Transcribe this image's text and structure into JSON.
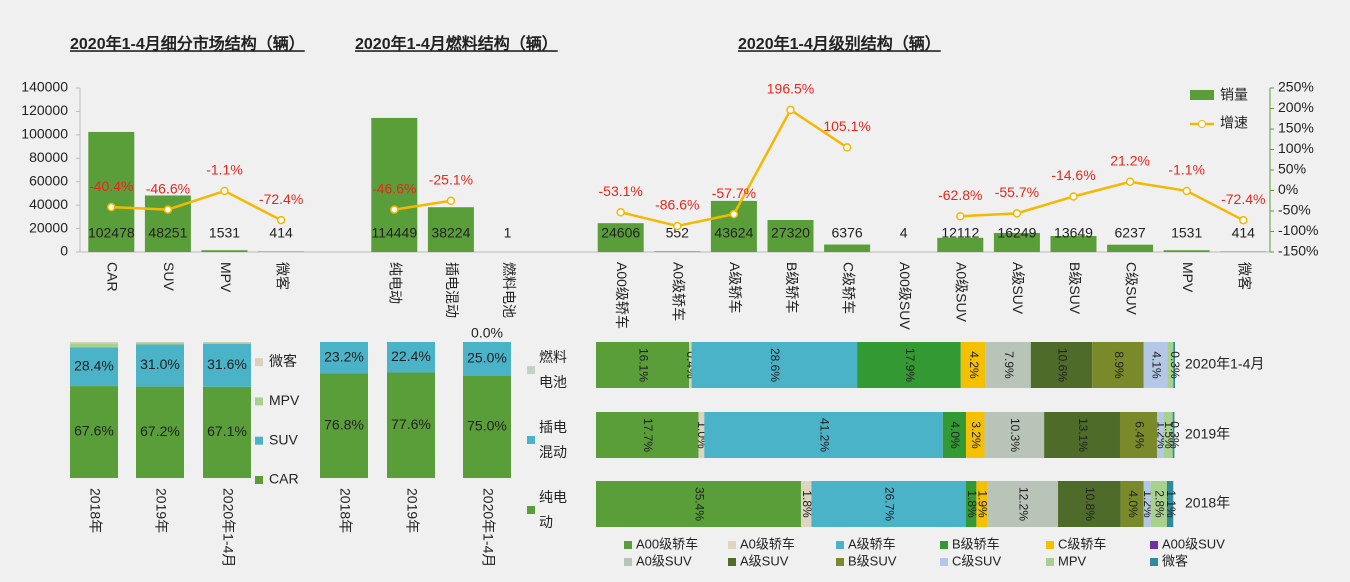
{
  "chart_data": [
    {
      "type": "combo",
      "series_names": [
        "销量",
        "增速"
      ],
      "bar_color": "#5a9e3a",
      "line_color": "#f5b800",
      "growth_label_color": "#e8261c",
      "ylim": [
        0,
        140000
      ],
      "yticks": [
        0,
        20000,
        40000,
        60000,
        80000,
        100000,
        120000,
        140000
      ],
      "y2lim": [
        -150,
        250
      ],
      "y2ticks": [
        {
          "value": -150,
          "label": "-150%"
        },
        {
          "value": -100,
          "label": "-100%"
        },
        {
          "value": -50,
          "label": "-50%"
        },
        {
          "value": 0,
          "label": "0%"
        },
        {
          "value": 50,
          "label": "50%"
        },
        {
          "value": 100,
          "label": "100%"
        },
        {
          "value": 150,
          "label": "150%"
        },
        {
          "value": 200,
          "label": "200%"
        },
        {
          "value": 250,
          "label": "250%"
        }
      ],
      "groups": [
        {
          "title": "2020年1-4月细分市场结构（辆）",
          "categories": [
            "CAR",
            "SUV",
            "MPV",
            "微客"
          ],
          "values": [
            102478,
            48251,
            1531,
            414
          ],
          "growth": [
            -40.4,
            -46.6,
            -1.1,
            -72.4
          ],
          "growth_labels": [
            "-40.4%",
            "-46.6%",
            "-1.1%",
            "-72.4%"
          ]
        },
        {
          "title": "2020年1-4月燃料结构（辆）",
          "categories": [
            "纯电动",
            "插电混动",
            "燃料电池"
          ],
          "values": [
            114449,
            38224,
            1
          ],
          "growth": [
            -46.6,
            -25.1,
            null
          ],
          "growth_labels": [
            "-46.6%",
            "-25.1%",
            null
          ]
        },
        {
          "title": "2020年1-4月级别结构（辆）",
          "categories": [
            "A00级轿车",
            "A0级轿车",
            "A级轿车",
            "B级轿车",
            "C级轿车",
            "A00级SUV",
            "A0级SUV",
            "A级SUV",
            "B级SUV",
            "C级SUV",
            "MPV",
            "微客"
          ],
          "values": [
            24606,
            552,
            43624,
            27320,
            6376,
            4,
            12112,
            16249,
            13649,
            6237,
            1531,
            414
          ],
          "growth": [
            -53.1,
            -86.6,
            -57.7,
            196.5,
            105.1,
            null,
            -62.8,
            -55.7,
            -14.6,
            21.2,
            -1.1,
            -72.4
          ],
          "growth_labels": [
            "-53.1%",
            "-86.6%",
            "-57.7%",
            "196.5%",
            "105.1%",
            null,
            "-62.8%",
            "-55.7%",
            "-14.6%",
            "21.2%",
            "-1.1%",
            "-72.4%"
          ]
        }
      ]
    },
    {
      "type": "stacked_column",
      "categories": [
        "2018年",
        "2019年",
        "2020年1-4月"
      ],
      "ylim": [
        0,
        100
      ],
      "series": [
        {
          "name": "CAR",
          "color": "#5a9e3a",
          "values": [
            67.6,
            67.2,
            67.1
          ],
          "value_labels": [
            "67.6%",
            "67.2%",
            "67.1%"
          ]
        },
        {
          "name": "SUV",
          "color": "#4bb3c8",
          "values": [
            28.4,
            31.0,
            31.6
          ],
          "value_labels": [
            "28.4%",
            "31.0%",
            "31.6%"
          ]
        },
        {
          "name": "MPV",
          "color": "#a9d18e",
          "values": [
            3.0,
            1.4,
            1.0
          ]
        },
        {
          "name": "微客",
          "color": "#d9d0bc",
          "values": [
            1.0,
            0.4,
            0.3
          ]
        }
      ]
    },
    {
      "type": "stacked_column",
      "categories": [
        "2018年",
        "2019年",
        "2020年1-4月"
      ],
      "ylim": [
        0,
        100
      ],
      "series": [
        {
          "name": "纯电动",
          "color": "#5a9e3a",
          "values": [
            76.8,
            77.6,
            75.0
          ],
          "value_labels": [
            "76.8%",
            "77.6%",
            "75.0%"
          ]
        },
        {
          "name": "插电混动",
          "color": "#4bb3c8",
          "values": [
            23.2,
            22.4,
            25.0
          ],
          "value_labels": [
            "23.2%",
            "22.4%",
            "25.0%"
          ]
        },
        {
          "name": "燃料电池",
          "color": "#c5d0c5",
          "values": [
            0.0,
            0.0,
            0.0
          ],
          "value_labels": [
            null,
            null,
            "0.0%"
          ]
        }
      ]
    },
    {
      "type": "stacked_bar",
      "categories": [
        "2020年1-4月",
        "2019年",
        "2018年"
      ],
      "xlim": [
        0,
        100
      ],
      "series": [
        {
          "name": "A00级轿车",
          "color": "#5a9e3a",
          "values": [
            16.1,
            17.7,
            35.4
          ],
          "value_labels": [
            "16.1%",
            "17.7%",
            "35.4%"
          ]
        },
        {
          "name": "A0级轿车",
          "color": "#ddd5c2",
          "values": [
            0.4,
            1.0,
            1.8
          ],
          "value_labels": [
            "0.4%",
            "1.0%",
            "1.8%"
          ]
        },
        {
          "name": "A级轿车",
          "color": "#4bb3c8",
          "values": [
            28.6,
            41.2,
            26.7
          ],
          "value_labels": [
            "28.6%",
            "41.2%",
            "26.7%"
          ]
        },
        {
          "name": "B级轿车",
          "color": "#339933",
          "values": [
            17.9,
            4.0,
            1.8
          ],
          "value_labels": [
            "17.9%",
            "4.0%",
            "1.8%"
          ]
        },
        {
          "name": "C级轿车",
          "color": "#f5c000",
          "values": [
            4.2,
            3.2,
            1.9
          ],
          "value_labels": [
            "4.2%",
            "3.2%",
            "1.9%"
          ]
        },
        {
          "name": "A00级SUV",
          "color": "#7030a0",
          "values": [
            0.0,
            0.0,
            0.0
          ]
        },
        {
          "name": "A0级SUV",
          "color": "#b8c4b8",
          "values": [
            7.9,
            10.3,
            12.2
          ],
          "value_labels": [
            "7.9%",
            "10.3%",
            "12.2%"
          ]
        },
        {
          "name": "A级SUV",
          "color": "#4f6b2a",
          "values": [
            10.6,
            13.1,
            10.8
          ],
          "value_labels": [
            "10.6%",
            "13.1%",
            "10.8%"
          ]
        },
        {
          "name": "B级SUV",
          "color": "#7a8a2a",
          "values": [
            8.9,
            6.4,
            4.0
          ],
          "value_labels": [
            "8.9%",
            "6.4%",
            "4.0%"
          ]
        },
        {
          "name": "C级SUV",
          "color": "#b4c7e7",
          "values": [
            4.1,
            1.2,
            1.2
          ],
          "value_labels": [
            "4.1%",
            "1.2%",
            "1.2%"
          ]
        },
        {
          "name": "MPV",
          "color": "#a9d18e",
          "values": [
            1.0,
            1.5,
            2.8
          ],
          "value_labels": [
            null,
            "1.5%",
            "2.8%"
          ]
        },
        {
          "name": "微客",
          "color": "#2e8b9a",
          "values": [
            0.3,
            0.3,
            1.1
          ],
          "value_labels": [
            "0.3%",
            "0.3%",
            "1.1%"
          ]
        }
      ]
    }
  ]
}
